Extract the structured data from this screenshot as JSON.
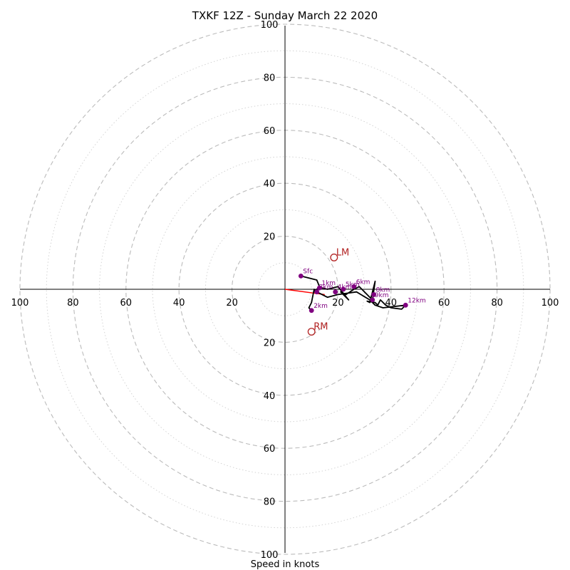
{
  "chart_data": {
    "type": "scatter",
    "title": "TXKF 12Z - Sunday March 22 2020",
    "xlabel": "Speed in knots",
    "ylabel": "",
    "range": 100,
    "tick_labels": [
      "20",
      "40",
      "60",
      "80",
      "100"
    ],
    "axis_labels": {
      "right": [
        "20",
        "40",
        "60",
        "80",
        "100"
      ],
      "left": [
        "100",
        "80",
        "60",
        "40",
        "20"
      ],
      "top": [
        "100",
        "80",
        "60",
        "40",
        "20"
      ],
      "bottom": [
        "20",
        "40",
        "60",
        "80",
        "100"
      ]
    },
    "grid": true,
    "colors": {
      "hodograph": "#000000",
      "height_markers": "#800080",
      "storm_motion": "#b22222",
      "shear_vector": "#ff0000",
      "grid": "#bbbbbb"
    },
    "hodograph_trace": [
      [
        6,
        5
      ],
      [
        10,
        4
      ],
      [
        12,
        3.5
      ],
      [
        13,
        1
      ],
      [
        11,
        -1
      ],
      [
        14,
        0.5
      ],
      [
        16,
        0
      ],
      [
        20,
        1
      ],
      [
        24,
        -4
      ],
      [
        21,
        -1
      ],
      [
        23,
        -2
      ],
      [
        26,
        0
      ],
      [
        28,
        1
      ],
      [
        30,
        -1
      ],
      [
        32,
        -3
      ],
      [
        33,
        -4
      ],
      [
        34,
        3
      ],
      [
        32,
        -5
      ],
      [
        31,
        -4.5
      ],
      [
        34,
        -5
      ],
      [
        35,
        -6
      ],
      [
        36,
        -4
      ],
      [
        38,
        -6
      ],
      [
        40,
        -7
      ],
      [
        44,
        -7.5
      ],
      [
        45.5,
        -6
      ],
      [
        37,
        -7
      ],
      [
        34,
        -6
      ],
      [
        32,
        -4
      ],
      [
        27,
        -1
      ],
      [
        20,
        -2
      ],
      [
        16,
        -3
      ],
      [
        14,
        -2
      ],
      [
        12,
        -1
      ],
      [
        11,
        0
      ],
      [
        10,
        -5
      ],
      [
        9,
        -7
      ],
      [
        10,
        -8
      ]
    ],
    "height_markers": [
      {
        "label": "Sfc",
        "u": 6,
        "v": 5
      },
      {
        "label": "2km",
        "u": 10,
        "v": -8
      },
      {
        "label": "1km",
        "u": 13,
        "v": 0.5
      },
      {
        "label": "3km",
        "u": 12,
        "v": -1
      },
      {
        "label": "4km",
        "u": 19,
        "v": -1
      },
      {
        "label": "5km",
        "u": 22,
        "v": 0
      },
      {
        "label": "6km",
        "u": 26,
        "v": 1
      },
      {
        "label": "8km",
        "u": 33.5,
        "v": -2
      },
      {
        "label": "9km",
        "u": 33,
        "v": -4
      },
      {
        "label": "12km",
        "u": 45.5,
        "v": -6
      }
    ],
    "storm_motion": [
      {
        "label": "LM",
        "u": 18.5,
        "v": 12
      },
      {
        "label": "RM",
        "u": 10,
        "v": -16
      }
    ],
    "shear_vector": {
      "u": 15,
      "v": -2
    }
  }
}
